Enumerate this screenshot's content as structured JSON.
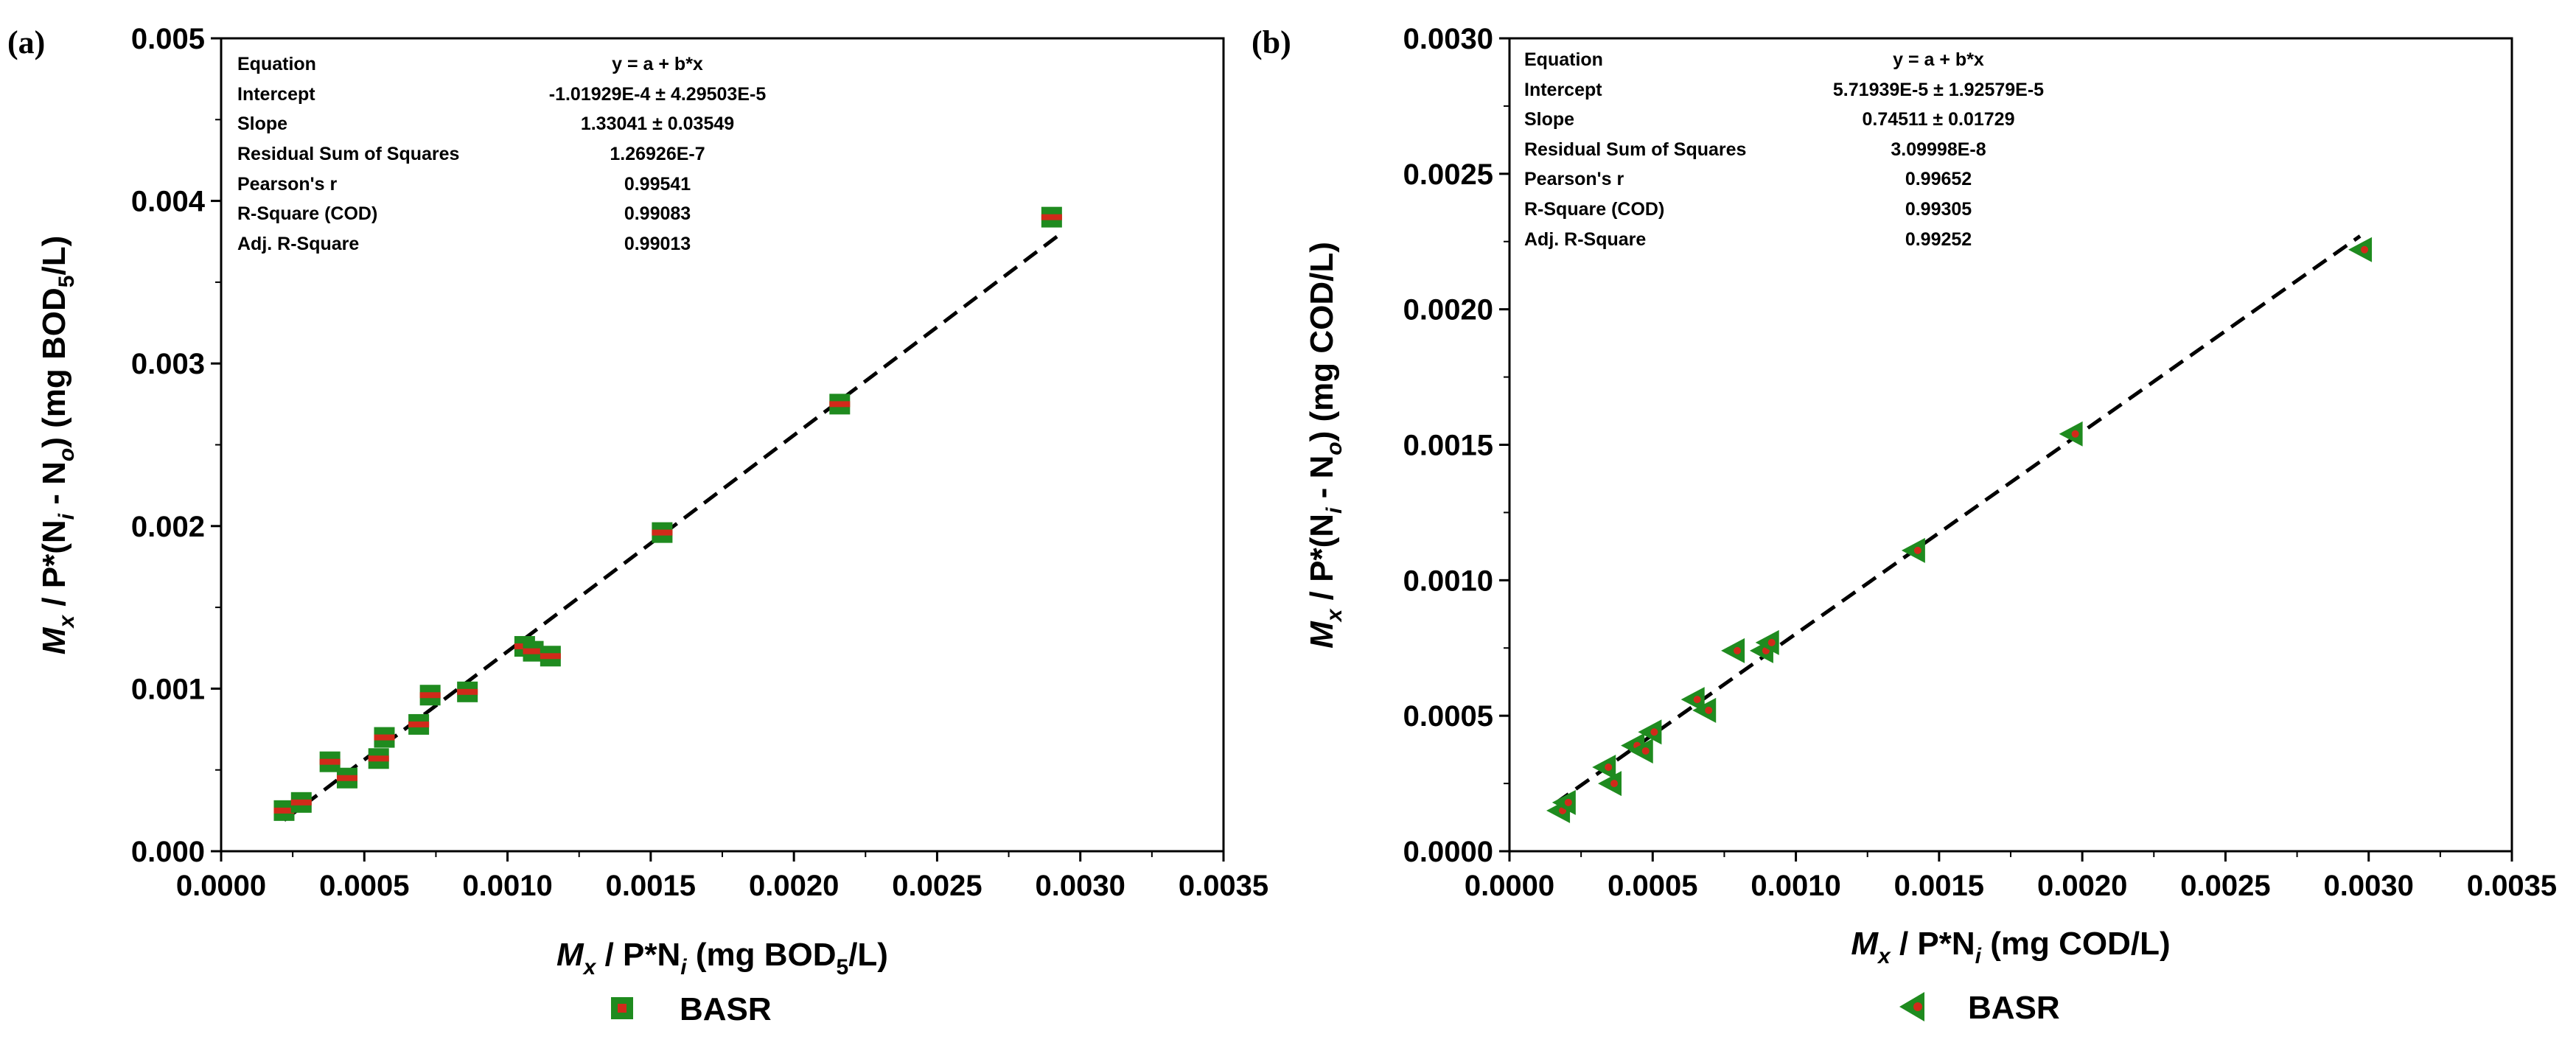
{
  "chart_data": [
    {
      "type": "scatter",
      "panel_label": "(a)",
      "xlabel": {
        "main": "M",
        "sub1": "x",
        "mid": " / P*N",
        "sub2": "i",
        "end": " (mg BOD",
        "sub3": "5",
        "tail": "/L)"
      },
      "ylabel": {
        "main": "M",
        "sub1": "x",
        "mid": " / P*(N",
        "sub2": "i",
        "mid2": " - N",
        "sub3": "o",
        "end": ") (mg BOD",
        "sub4": "5",
        "tail": "/L)"
      },
      "xlim": [
        0.0,
        0.0035
      ],
      "ylim": [
        0.0,
        0.005
      ],
      "xticks": [
        "0.0000",
        "0.0005",
        "0.0010",
        "0.0015",
        "0.0020",
        "0.0025",
        "0.0030",
        "0.0035"
      ],
      "yticks": [
        "0.000",
        "0.001",
        "0.002",
        "0.003",
        "0.004",
        "0.005"
      ],
      "xtick_values": [
        0.0,
        0.0005,
        0.001,
        0.0015,
        0.002,
        0.0025,
        0.003,
        0.0035
      ],
      "ytick_values": [
        0.0,
        0.001,
        0.002,
        0.003,
        0.004,
        0.005
      ],
      "fit_line": {
        "intercept": -0.000101929,
        "slope": 1.33041,
        "x_range": [
          0.00022,
          0.00292
        ]
      },
      "stats": [
        {
          "label": "Equation",
          "value": "y = a + b*x"
        },
        {
          "label": "Intercept",
          "value": "-1.01929E-4 ± 4.29503E-5"
        },
        {
          "label": "Slope",
          "value": "1.33041 ± 0.03549"
        },
        {
          "label": "Residual Sum of Squares",
          "value": "1.26926E-7"
        },
        {
          "label": "Pearson's r",
          "value": "0.99541"
        },
        {
          "label": "R-Square (COD)",
          "value": "0.99083"
        },
        {
          "label": "Adj. R-Square",
          "value": "0.99013"
        }
      ],
      "series": [
        {
          "name": "BASR",
          "marker": "square",
          "color": "#1f8b1f",
          "center_color": "#d12a1a",
          "points": [
            {
              "x": 0.00022,
              "y": 0.00025
            },
            {
              "x": 0.00028,
              "y": 0.0003
            },
            {
              "x": 0.00038,
              "y": 0.00055
            },
            {
              "x": 0.00044,
              "y": 0.00045
            },
            {
              "x": 0.00055,
              "y": 0.00057
            },
            {
              "x": 0.00057,
              "y": 0.0007
            },
            {
              "x": 0.00069,
              "y": 0.00078
            },
            {
              "x": 0.00073,
              "y": 0.00096
            },
            {
              "x": 0.00086,
              "y": 0.00098
            },
            {
              "x": 0.00106,
              "y": 0.00126
            },
            {
              "x": 0.00109,
              "y": 0.00123
            },
            {
              "x": 0.00115,
              "y": 0.0012
            },
            {
              "x": 0.00154,
              "y": 0.00196
            },
            {
              "x": 0.00216,
              "y": 0.00275
            },
            {
              "x": 0.0029,
              "y": 0.0039
            }
          ]
        }
      ],
      "legend": "BASR"
    },
    {
      "type": "scatter",
      "panel_label": "(b)",
      "xlabel": {
        "main": "M",
        "sub1": "x",
        "mid": " / P*N",
        "sub2": "i",
        "end": " (mg COD/L)"
      },
      "ylabel": {
        "main": "M",
        "sub1": "x",
        "mid": " / P*(N",
        "sub2": "i",
        "mid2": " - N",
        "sub3": "o",
        "end": ") (mg COD/L)"
      },
      "xlim": [
        0.0,
        0.0035
      ],
      "ylim": [
        0.0,
        0.003
      ],
      "xticks": [
        "0.0000",
        "0.0005",
        "0.0010",
        "0.0015",
        "0.0020",
        "0.0025",
        "0.0030",
        "0.0035"
      ],
      "yticks": [
        "0.0000",
        "0.0005",
        "0.0010",
        "0.0015",
        "0.0020",
        "0.0025",
        "0.0030"
      ],
      "xtick_values": [
        0.0,
        0.0005,
        0.001,
        0.0015,
        0.002,
        0.0025,
        0.003,
        0.0035
      ],
      "ytick_values": [
        0.0,
        0.0005,
        0.001,
        0.0015,
        0.002,
        0.0025,
        0.003
      ],
      "fit_line": {
        "intercept": 5.71939e-05,
        "slope": 0.74511,
        "x_range": [
          0.00016,
          0.00297
        ]
      },
      "stats": [
        {
          "label": "Equation",
          "value": "y = a + b*x"
        },
        {
          "label": "Intercept",
          "value": "5.71939E-5 ± 1.92579E-5"
        },
        {
          "label": "Slope",
          "value": "0.74511 ± 0.01729"
        },
        {
          "label": "Residual Sum of Squares",
          "value": "3.09998E-8"
        },
        {
          "label": "Pearson's r",
          "value": "0.99652"
        },
        {
          "label": "R-Square (COD)",
          "value": "0.99305"
        },
        {
          "label": "Adj. R-Square",
          "value": "0.99252"
        }
      ],
      "series": [
        {
          "name": "BASR",
          "marker": "triangle-left",
          "color": "#1f8b1f",
          "center_color": "#d12a1a",
          "points": [
            {
              "x": 0.00017,
              "y": 0.00015
            },
            {
              "x": 0.00019,
              "y": 0.00018
            },
            {
              "x": 0.00033,
              "y": 0.00031
            },
            {
              "x": 0.00035,
              "y": 0.00025
            },
            {
              "x": 0.00043,
              "y": 0.00039
            },
            {
              "x": 0.00046,
              "y": 0.00037
            },
            {
              "x": 0.00049,
              "y": 0.00044
            },
            {
              "x": 0.00064,
              "y": 0.00056
            },
            {
              "x": 0.00068,
              "y": 0.00052
            },
            {
              "x": 0.00078,
              "y": 0.00074
            },
            {
              "x": 0.00088,
              "y": 0.00074
            },
            {
              "x": 0.0009,
              "y": 0.00077
            },
            {
              "x": 0.00141,
              "y": 0.00111
            },
            {
              "x": 0.00196,
              "y": 0.00154
            },
            {
              "x": 0.00297,
              "y": 0.00222
            }
          ]
        }
      ],
      "legend": "BASR"
    }
  ]
}
